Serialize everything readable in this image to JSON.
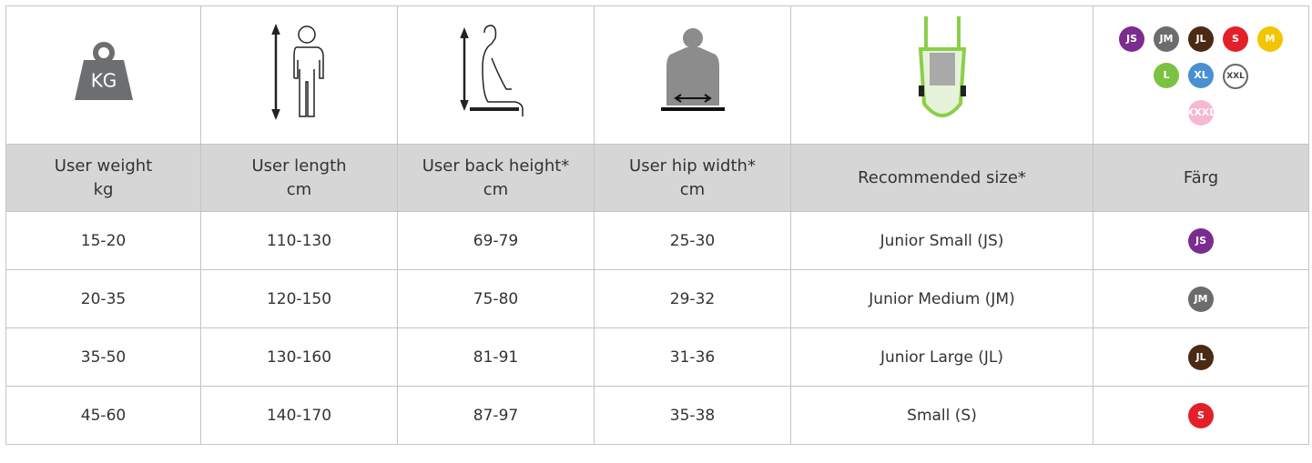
{
  "icon_row": {
    "weight_icon_label": "KG",
    "size_badges": [
      {
        "label": "JS",
        "color": "#7b2d8f"
      },
      {
        "label": "JM",
        "color": "#6b6c6e"
      },
      {
        "label": "JL",
        "color": "#4a2a14"
      },
      {
        "label": "S",
        "color": "#e3202a"
      },
      {
        "label": "M",
        "color": "#f2c500"
      },
      {
        "label": "L",
        "color": "#7cc242"
      },
      {
        "label": "XL",
        "color": "#4a90d0"
      },
      {
        "label": "XXL",
        "color": "#ffffff"
      },
      {
        "label": "XXXL",
        "color": "#f6b8d2"
      }
    ]
  },
  "table": {
    "header": [
      [
        "User weight",
        "kg"
      ],
      [
        "User length",
        "cm"
      ],
      [
        "User back height*",
        "cm"
      ],
      [
        "User hip width*",
        "cm"
      ],
      [
        "Recommended size*"
      ],
      [
        "Färg"
      ]
    ],
    "rows": [
      [
        "15-20",
        "110-130",
        "69-79",
        "25-30",
        "Junior Small (JS)",
        {
          "label": "JS",
          "color": "#7b2d8f"
        }
      ],
      [
        "20-35",
        "120-150",
        "75-80",
        "29-32",
        "Junior Medium (JM)",
        {
          "label": "JM",
          "color": "#6b6c6e"
        }
      ],
      [
        "35-50",
        "130-160",
        "81-91",
        "31-36",
        "Junior Large (JL)",
        {
          "label": "JL",
          "color": "#4a2a14"
        }
      ],
      [
        "45-60",
        "140-170",
        "87-97",
        "35-38",
        "Small (S)",
        {
          "label": "S",
          "color": "#e3202a"
        }
      ]
    ]
  }
}
